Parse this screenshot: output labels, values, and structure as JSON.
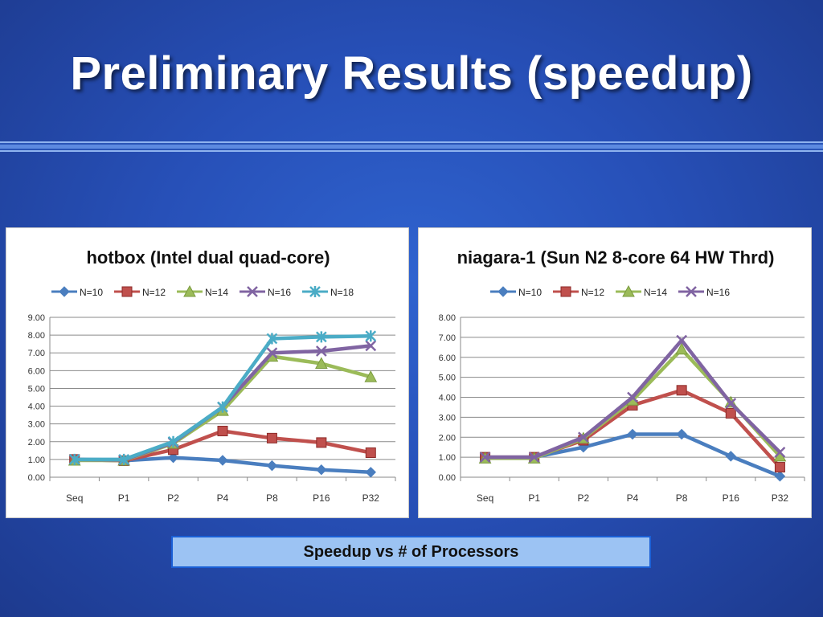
{
  "slide": {
    "title": "Preliminary Results (speedup)",
    "caption": "Speedup vs # of Processors"
  },
  "colors": {
    "N=10": "#4a7ebf",
    "N=12": "#c0504d",
    "N=14": "#9bbb59",
    "N=16": "#8064a2",
    "N=18": "#4bacc6"
  },
  "chart_data": [
    {
      "type": "line",
      "title": "hotbox (Intel dual quad-core)",
      "categories": [
        "Seq",
        "P1",
        "P2",
        "P4",
        "P8",
        "P16",
        "P32"
      ],
      "ylim": [
        0,
        9
      ],
      "yticks": [
        "0.00",
        "1.00",
        "2.00",
        "3.00",
        "4.00",
        "5.00",
        "6.00",
        "7.00",
        "8.00",
        "9.00"
      ],
      "grid": true,
      "legend": "top",
      "series": [
        {
          "name": "N=10",
          "marker": "diamond",
          "color": "#4a7ebf",
          "values": [
            1.0,
            0.93,
            1.1,
            0.95,
            0.65,
            0.42,
            0.28
          ]
        },
        {
          "name": "N=12",
          "marker": "square",
          "color": "#c0504d",
          "values": [
            1.0,
            0.93,
            1.55,
            2.6,
            2.2,
            1.95,
            1.38
          ]
        },
        {
          "name": "N=14",
          "marker": "triangle",
          "color": "#9bbb59",
          "values": [
            0.95,
            0.95,
            1.9,
            3.75,
            6.8,
            6.4,
            5.65
          ]
        },
        {
          "name": "N=16",
          "marker": "x",
          "color": "#8064a2",
          "values": [
            1.0,
            0.97,
            1.95,
            3.95,
            7.0,
            7.1,
            7.4
          ]
        },
        {
          "name": "N=18",
          "marker": "star",
          "color": "#4bacc6",
          "values": [
            1.0,
            1.0,
            2.0,
            3.95,
            7.8,
            7.9,
            7.95
          ]
        }
      ]
    },
    {
      "type": "line",
      "title": "niagara-1 (Sun N2 8-core 64 HW Thrd)",
      "categories": [
        "Seq",
        "P1",
        "P2",
        "P4",
        "P8",
        "P16",
        "P32"
      ],
      "ylim": [
        0,
        8
      ],
      "yticks": [
        "0.00",
        "1.00",
        "2.00",
        "3.00",
        "4.00",
        "5.00",
        "6.00",
        "7.00",
        "8.00"
      ],
      "grid": true,
      "legend": "top",
      "series": [
        {
          "name": "N=10",
          "marker": "diamond",
          "color": "#4a7ebf",
          "values": [
            1.0,
            1.0,
            1.5,
            2.15,
            2.15,
            1.05,
            0.05
          ]
        },
        {
          "name": "N=12",
          "marker": "square",
          "color": "#c0504d",
          "values": [
            1.0,
            1.0,
            1.85,
            3.6,
            4.35,
            3.2,
            0.5
          ]
        },
        {
          "name": "N=14",
          "marker": "triangle",
          "color": "#9bbb59",
          "values": [
            0.95,
            0.95,
            1.95,
            3.85,
            6.4,
            3.75,
            1.05
          ]
        },
        {
          "name": "N=16",
          "marker": "x",
          "color": "#8064a2",
          "values": [
            1.0,
            1.0,
            2.0,
            4.0,
            6.85,
            3.7,
            1.25
          ]
        }
      ]
    }
  ]
}
